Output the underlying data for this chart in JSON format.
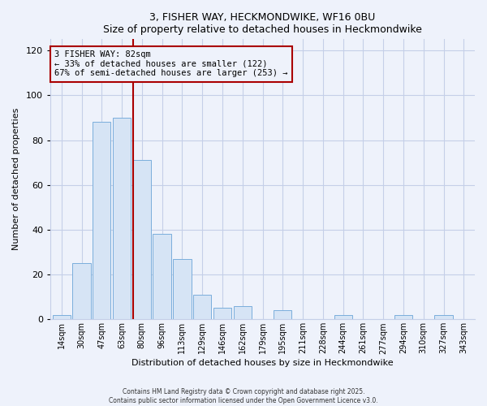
{
  "title": "3, FISHER WAY, HECKMONDWIKE, WF16 0BU",
  "subtitle": "Size of property relative to detached houses in Heckmondwike",
  "xlabel": "Distribution of detached houses by size in Heckmondwike",
  "ylabel": "Number of detached properties",
  "bar_labels": [
    "14sqm",
    "30sqm",
    "47sqm",
    "63sqm",
    "80sqm",
    "96sqm",
    "113sqm",
    "129sqm",
    "146sqm",
    "162sqm",
    "179sqm",
    "195sqm",
    "211sqm",
    "228sqm",
    "244sqm",
    "261sqm",
    "277sqm",
    "294sqm",
    "310sqm",
    "327sqm",
    "343sqm"
  ],
  "bar_values": [
    2,
    25,
    88,
    90,
    71,
    38,
    27,
    11,
    5,
    6,
    0,
    4,
    0,
    0,
    2,
    0,
    0,
    2,
    0,
    2,
    0
  ],
  "bar_color": "#d6e4f5",
  "bar_edge_color": "#7aaedc",
  "ylim": [
    0,
    125
  ],
  "yticks": [
    0,
    20,
    40,
    60,
    80,
    100,
    120
  ],
  "vline_x_index": 4,
  "vline_color": "#aa0000",
  "annotation_title": "3 FISHER WAY: 82sqm",
  "annotation_line1": "← 33% of detached houses are smaller (122)",
  "annotation_line2": "67% of semi-detached houses are larger (253) →",
  "footnote1": "Contains HM Land Registry data © Crown copyright and database right 2025.",
  "footnote2": "Contains public sector information licensed under the Open Government Licence v3.0.",
  "background_color": "#eef2fb",
  "grid_color": "#c5cfe8"
}
